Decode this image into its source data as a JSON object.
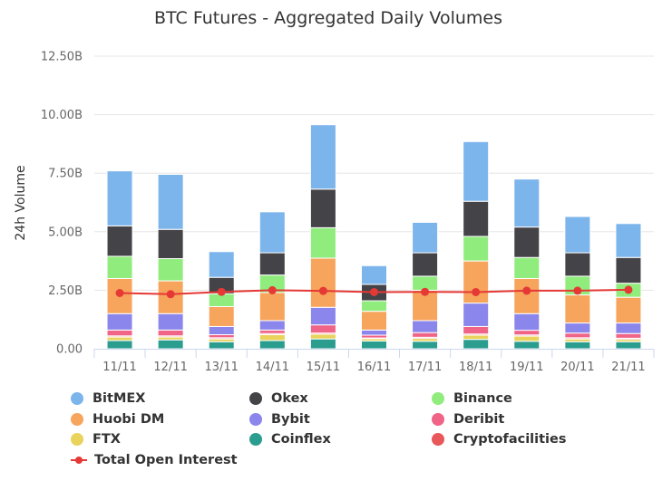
{
  "chart_data": {
    "type": "bar",
    "stacked": true,
    "title": "BTC Futures - Aggregated Daily Volumes",
    "ylabel": "24h Volume",
    "xlabel": "",
    "ylim": [
      0,
      12.5
    ],
    "yticks": [
      "0.00",
      "2.50B",
      "5.00B",
      "7.50B",
      "10.00B",
      "12.50B"
    ],
    "grid": true,
    "legend_position": "bottom",
    "categories": [
      "11/11",
      "12/11",
      "13/11",
      "14/11",
      "15/11",
      "16/11",
      "17/11",
      "18/11",
      "19/11",
      "20/11",
      "21/11"
    ],
    "series": [
      {
        "name": "Coinflex",
        "color": "#2a9d8f",
        "values": [
          0.35,
          0.38,
          0.3,
          0.35,
          0.42,
          0.33,
          0.32,
          0.4,
          0.32,
          0.3,
          0.3
        ]
      },
      {
        "name": "FTX",
        "color": "#e9d35b",
        "values": [
          0.15,
          0.12,
          0.12,
          0.25,
          0.2,
          0.1,
          0.12,
          0.18,
          0.22,
          0.12,
          0.1
        ]
      },
      {
        "name": "Cryptofacilities",
        "color": "#e8575a",
        "values": [
          0.05,
          0.05,
          0.05,
          0.05,
          0.05,
          0.03,
          0.05,
          0.05,
          0.05,
          0.05,
          0.05
        ]
      },
      {
        "name": "Deribit",
        "color": "#f06488",
        "values": [
          0.25,
          0.25,
          0.13,
          0.15,
          0.35,
          0.12,
          0.2,
          0.32,
          0.2,
          0.2,
          0.2
        ]
      },
      {
        "name": "Bybit",
        "color": "#8a86ec",
        "values": [
          0.7,
          0.7,
          0.35,
          0.4,
          0.75,
          0.22,
          0.51,
          1.0,
          0.71,
          0.43,
          0.45
        ]
      },
      {
        "name": "Huobi DM",
        "color": "#f7a45d",
        "values": [
          1.5,
          1.4,
          0.85,
          1.2,
          2.1,
          0.8,
          1.3,
          1.8,
          1.5,
          1.2,
          1.1
        ]
      },
      {
        "name": "Binance",
        "color": "#90ed7d",
        "values": [
          0.95,
          0.95,
          0.55,
          0.75,
          1.3,
          0.45,
          0.6,
          1.05,
          0.9,
          0.8,
          0.6
        ]
      },
      {
        "name": "Okex",
        "color": "#434348",
        "values": [
          1.3,
          1.25,
          0.7,
          0.95,
          1.65,
          0.7,
          1.0,
          1.5,
          1.3,
          1.0,
          1.1
        ]
      },
      {
        "name": "BitMEX",
        "color": "#7cb5ec",
        "values": [
          2.35,
          2.35,
          1.1,
          1.75,
          2.75,
          0.8,
          1.3,
          2.55,
          2.05,
          1.55,
          1.45
        ]
      }
    ],
    "line_series": {
      "name": "Total Open Interest",
      "color": "#e53935",
      "values": [
        2.38,
        2.33,
        2.43,
        2.5,
        2.47,
        2.42,
        2.43,
        2.42,
        2.48,
        2.48,
        2.52
      ]
    }
  },
  "legend": {
    "items": [
      {
        "label": "BitMEX",
        "color": "#7cb5ec",
        "icon": "circle"
      },
      {
        "label": "Okex",
        "color": "#434348",
        "icon": "circle"
      },
      {
        "label": "Binance",
        "color": "#90ed7d",
        "icon": "circle"
      },
      {
        "label": "Huobi DM",
        "color": "#f7a45d",
        "icon": "circle"
      },
      {
        "label": "Bybit",
        "color": "#8a86ec",
        "icon": "circle"
      },
      {
        "label": "Deribit",
        "color": "#f06488",
        "icon": "circle"
      },
      {
        "label": "FTX",
        "color": "#e9d35b",
        "icon": "circle"
      },
      {
        "label": "Coinflex",
        "color": "#2a9d8f",
        "icon": "circle"
      },
      {
        "label": "Cryptofacilities",
        "color": "#e8575a",
        "icon": "circle"
      },
      {
        "label": "Total Open Interest",
        "color": "#e53935",
        "icon": "line-marker"
      }
    ]
  }
}
